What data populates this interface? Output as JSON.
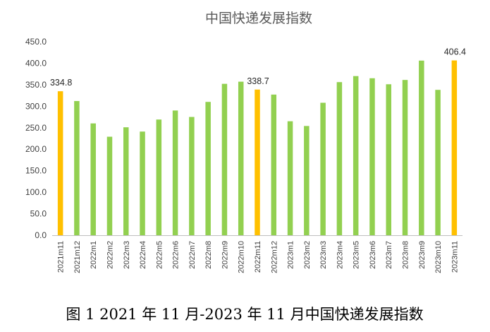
{
  "colors": {
    "default_bar": "#92D050",
    "highlight_bar": "#FFC000",
    "axis": "#bfbfbf",
    "text": "#404040"
  },
  "chart_data": {
    "type": "bar",
    "title": "中国快递发展指数",
    "caption": "图 1 2021 年 11 月-2023 年 11 月中国快递发展指数",
    "xlabel": "",
    "ylabel": "",
    "ylim": [
      0,
      450
    ],
    "ytick_labels": [
      "0.0",
      "50.0",
      "100.0",
      "150.0",
      "200.0",
      "250.0",
      "300.0",
      "350.0",
      "400.0",
      "450.0"
    ],
    "grid": false,
    "legend": "none",
    "categories": [
      "2021m11",
      "2021m12",
      "2022m1",
      "2022m2",
      "2022m3",
      "2022m4",
      "2022m5",
      "2022m6",
      "2022m7",
      "2022m8",
      "2022m9",
      "2022m10",
      "2022m11",
      "2022m12",
      "2023m1",
      "2023m2",
      "2023m3",
      "2023m4",
      "2023m5",
      "2023m6",
      "2023m7",
      "2023m8",
      "2023m9",
      "2023m10",
      "2023m11"
    ],
    "values": [
      334.8,
      312,
      260,
      229,
      251,
      241,
      269,
      290,
      275,
      310,
      352,
      357,
      338.7,
      327,
      265,
      254,
      308,
      356,
      370,
      365,
      351,
      361,
      406,
      338,
      406.4
    ],
    "highlighted": [
      "2021m11",
      "2022m11",
      "2023m11"
    ],
    "data_labels": [
      {
        "category": "2021m11",
        "text": "334.8"
      },
      {
        "category": "2022m11",
        "text": "338.7"
      },
      {
        "category": "2023m11",
        "text": "406.4"
      }
    ]
  }
}
